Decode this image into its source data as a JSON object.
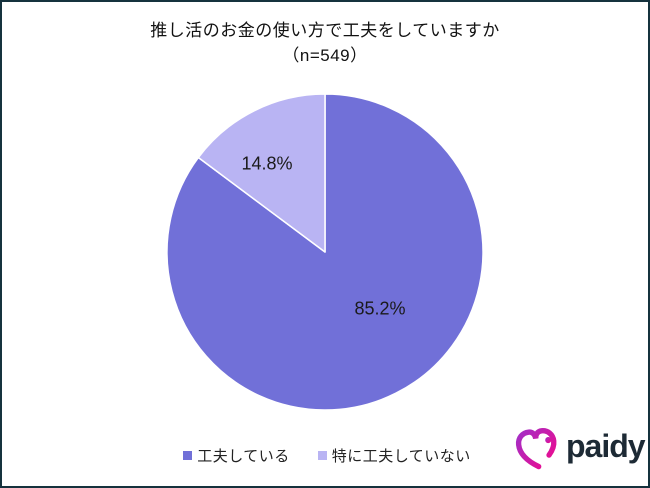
{
  "frame": {
    "background": "#ffffff",
    "border_color": "#15323d"
  },
  "chart_data": {
    "type": "pie",
    "title": "推し活のお金の使い方で工夫をしていますか（n=549）",
    "title_lines": [
      "推し活のお金の使い方で工夫をしていますか",
      "（n=549）"
    ],
    "sample_size": 549,
    "unit": "%",
    "start_angle_deg": 0,
    "direction": "clockwise",
    "legend_position": "bottom",
    "grid": false,
    "slices": [
      {
        "label": "工夫している",
        "value": 85.2,
        "display": "85.2%",
        "color": "#7170d8"
      },
      {
        "label": "特に工夫していない",
        "value": 14.8,
        "display": "14.8%",
        "color": "#b9b4f3"
      }
    ],
    "data_label_color": "#1a1a1a"
  },
  "logo": {
    "wordmark": "paidy",
    "icon": "paidy-heart-icon",
    "gradient": [
      "#a42ec6",
      "#f2098a"
    ],
    "text_color": "#1d2a35"
  }
}
